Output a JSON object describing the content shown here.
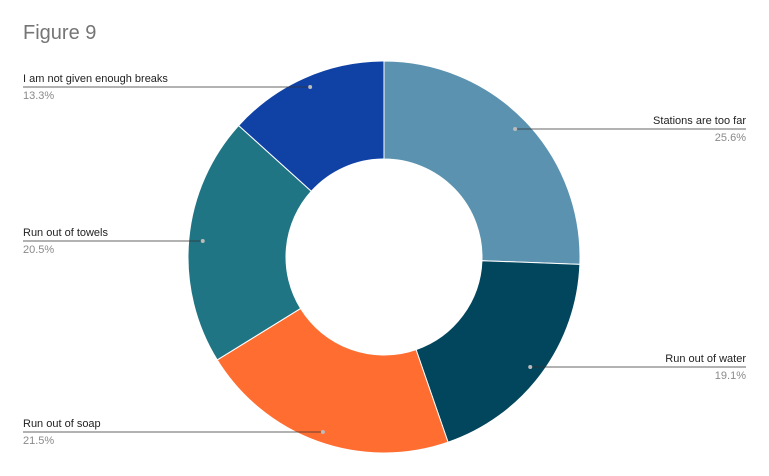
{
  "chart_data": {
    "type": "pie",
    "donut": true,
    "title": "Figure 9",
    "slices": [
      {
        "label": "Stations are too far",
        "value": 25.6,
        "value_label": "25.6%",
        "color": "#5a92b0"
      },
      {
        "label": "Run out of water",
        "value": 19.1,
        "value_label": "19.1%",
        "color": "#02465e"
      },
      {
        "label": "Run out of soap",
        "value": 21.5,
        "value_label": "21.5%",
        "color": "#ff6d31"
      },
      {
        "label": "Run out of towels",
        "value": 20.5,
        "value_label": "20.5%",
        "color": "#1f7583"
      },
      {
        "label": "I am not given enough breaks",
        "value": 13.3,
        "value_label": "13.3%",
        "color": "#1042a6"
      }
    ]
  }
}
